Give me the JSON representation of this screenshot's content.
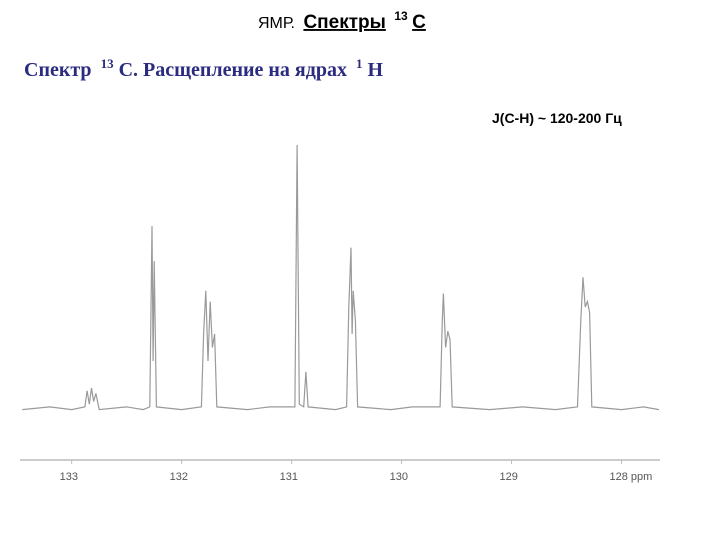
{
  "slide_title": {
    "prefix": "ЯМР.",
    "main": "Спектры",
    "sup": "13",
    "element": "C"
  },
  "chart_data": {
    "type": "line",
    "title": {
      "lead": "Спектр",
      "sup1": "13",
      "mid": "С. Расщепление на ядрах",
      "sup2": "1",
      "tail": "Н"
    },
    "annotation": "J(C-H) ~ 120-200 Гц",
    "x": [
      133.45,
      133.2,
      133.0,
      132.88,
      132.86,
      132.84,
      132.82,
      132.8,
      132.78,
      132.75,
      132.5,
      132.35,
      132.29,
      132.27,
      132.26,
      132.25,
      132.23,
      132.0,
      131.82,
      131.8,
      131.78,
      131.76,
      131.74,
      131.72,
      131.7,
      131.68,
      131.4,
      131.2,
      130.97,
      130.95,
      130.93,
      130.89,
      130.87,
      130.85,
      130.6,
      130.5,
      130.48,
      130.46,
      130.45,
      130.44,
      130.42,
      130.4,
      130.1,
      129.9,
      129.65,
      129.63,
      129.62,
      129.6,
      129.58,
      129.56,
      129.54,
      129.2,
      128.9,
      128.6,
      128.4,
      128.37,
      128.35,
      128.33,
      128.31,
      128.29,
      128.27,
      128.0,
      127.8,
      127.66
    ],
    "values": [
      2,
      3,
      2,
      3,
      9,
      4,
      10,
      5,
      8,
      2,
      3,
      2,
      3,
      70,
      20,
      57,
      3,
      2,
      3,
      30,
      46,
      20,
      42,
      25,
      30,
      3,
      2,
      3,
      3,
      100,
      4,
      3,
      16,
      3,
      2,
      3,
      40,
      62,
      30,
      46,
      35,
      3,
      2,
      3,
      3,
      35,
      45,
      25,
      31,
      28,
      3,
      2,
      3,
      2,
      3,
      35,
      51,
      40,
      42,
      38,
      3,
      2,
      3,
      2
    ],
    "color": "#9a9a9a",
    "xlim": [
      133.47,
      127.65
    ],
    "ylim": [
      0,
      120
    ],
    "xticks": [
      133,
      132,
      131,
      130,
      129,
      {
        "value": 128,
        "label": "128 ppm"
      }
    ]
  }
}
